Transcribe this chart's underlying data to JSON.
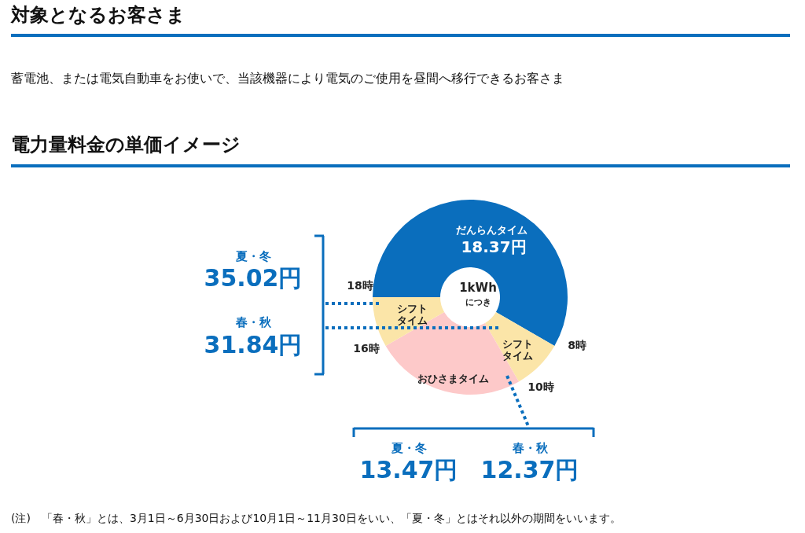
{
  "chart_data": {
    "type": "donut",
    "title": "電力量料金の単価イメージ",
    "categories": [
      "だんらんタイム",
      "シフトタイム",
      "おひさまタイム",
      "シフトタイム"
    ],
    "values": [
      58.34,
      8.33,
      25,
      8.33
    ],
    "colors": [
      "#0a6ebd",
      "#fbe5a8",
      "#fdc9c9",
      "#fbe5a8"
    ],
    "legend": false,
    "annotations": [
      "対象となるお客さま",
      "蓄電池、または電気自動車をお使いで、当該機器により電気のご使用を昼間へ移行できるお客さま",
      "夏・冬",
      "35.02円",
      "春・秋",
      "31.84円",
      "夏・冬",
      "13.47円",
      "春・秋",
      "12.37円",
      "18.37円",
      "1kWh",
      "につき",
      "18時",
      "16時",
      "8時",
      "10時",
      "(注)　「春・秋」とは、3月1日～6月30日および10月1日～11月30日をいい、「夏・冬」とはそれ以外の期間をいいます。"
    ]
  }
}
